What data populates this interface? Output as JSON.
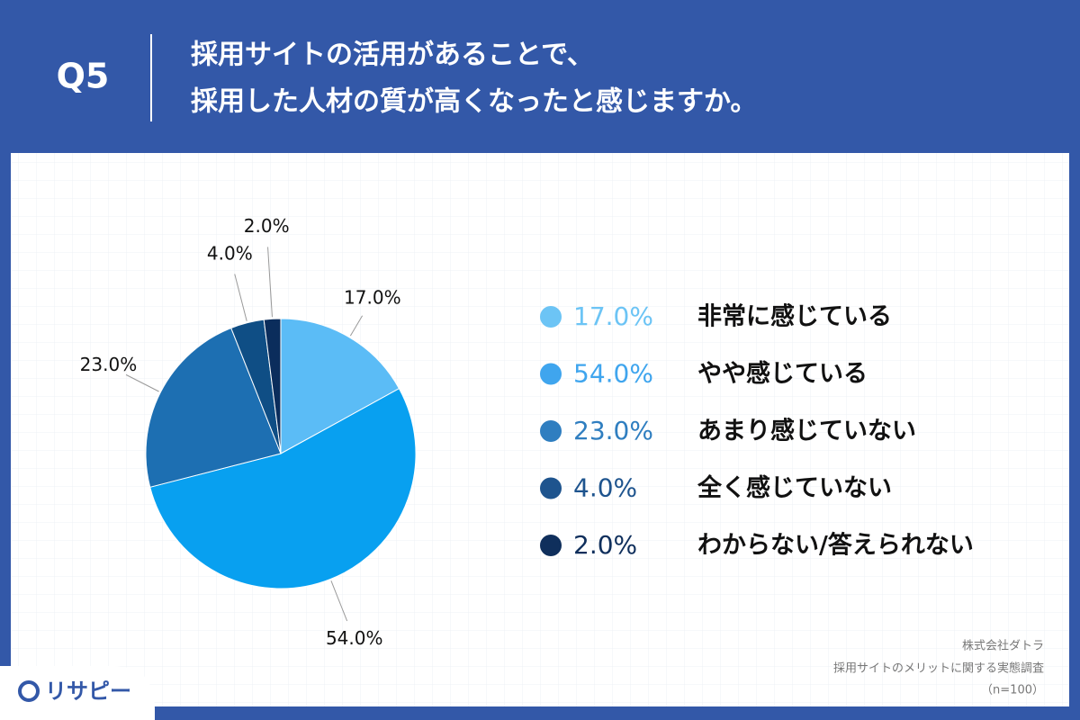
{
  "header": {
    "question": "Q5",
    "title_lines": [
      "採用サイトの活用があることで、",
      "採用した人材の質が高くなったと感じますか。"
    ]
  },
  "chart_data": {
    "type": "pie",
    "categories": [
      "非常に感じている",
      "やや感じている",
      "あまり感じていない",
      "全く感じていない",
      "わからない/答えられない"
    ],
    "values": [
      17,
      54,
      23,
      4,
      2
    ],
    "value_labels": [
      "17.0%",
      "54.0%",
      "23.0%",
      "4.0%",
      "2.0%"
    ],
    "colors": [
      "#5bbcf6",
      "#08a0f0",
      "#1d6fb2",
      "#0f4e85",
      "#0b2d5c"
    ],
    "legend_colors": [
      "#6cc4f5",
      "#3fa5ee",
      "#2f7ec0",
      "#1e548e",
      "#0f2f5c"
    ]
  },
  "footer": {
    "source_lines": [
      "株式会社ダトラ",
      "採用サイトのメリットに関する実態調査",
      "（n=100）"
    ],
    "logo": "リサピー"
  }
}
